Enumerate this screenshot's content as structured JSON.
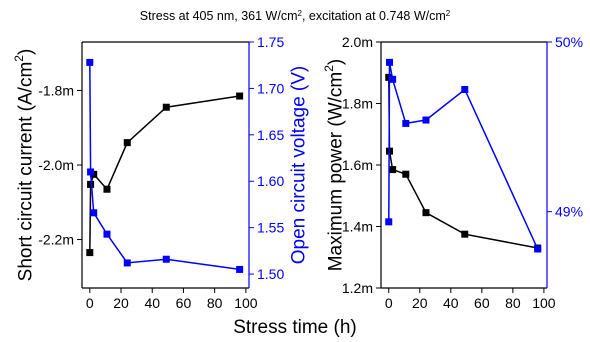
{
  "figure": {
    "title_html": "Stress at 405 nm, 361 W/cm<tspan baseline-shift=\"super\" font-size=\"8\">2</tspan>, excitation at 0.748 W/cm<tspan baseline-shift=\"super\" font-size=\"8\">2</tspan>",
    "title": "Stress at 405 nm, 361 W/cm2, excitation at 0.748 W/cm2",
    "xlabel": "Stress time (h)"
  },
  "chart_data": [
    {
      "type": "line",
      "xlabel": "Stress time (h)",
      "x_ticks": [
        "0",
        "20",
        "40",
        "60",
        "80",
        "100"
      ],
      "xlim": [
        -5,
        102
      ],
      "left_axis": {
        "label": "Short circuit current (A/cm2)",
        "label_html": "Short circuit current (A/cm<tspan baseline-shift=\"super\" font-size=\"12\">2</tspan>)",
        "color": "#000000",
        "ylim": [
          -2.33,
          -1.67
        ],
        "ticks": [
          -1.8,
          -2.0,
          -2.2
        ],
        "tick_labels": [
          "-1.8m",
          "-2.0m",
          "-2.2m"
        ]
      },
      "right_axis": {
        "label": "Open circuit voltage (V)",
        "color": "#0000ff",
        "ylim": [
          1.485,
          1.75
        ],
        "ticks": [
          1.75,
          1.7,
          1.65,
          1.6,
          1.55,
          1.5
        ],
        "tick_labels": [
          "1.75",
          "1.70",
          "1.65",
          "1.60",
          "1.55",
          "1.50"
        ]
      },
      "series": [
        {
          "axis": "left",
          "color": "#000000",
          "x": [
            0,
            0.5,
            2.5,
            11,
            24,
            49,
            96
          ],
          "y": [
            -2.235,
            -2.052,
            -2.025,
            -2.065,
            -1.94,
            -1.845,
            -1.815
          ]
        },
        {
          "axis": "right",
          "color": "#0000ff",
          "x": [
            0,
            0.5,
            2.5,
            11,
            24,
            49,
            96
          ],
          "y": [
            1.728,
            1.61,
            1.566,
            1.543,
            1.512,
            1.516,
            1.505
          ]
        }
      ]
    },
    {
      "type": "line",
      "xlabel": "Stress time (h)",
      "x_ticks": [
        "0",
        "20",
        "40",
        "60",
        "80",
        "100"
      ],
      "xlim": [
        -5,
        102
      ],
      "left_axis": {
        "label": "Maximum power (W/cm2)",
        "label_html": "Maximum power (W/cm<tspan baseline-shift=\"super\" font-size=\"12\">2</tspan>)",
        "color": "#000000",
        "ylim": [
          1.2,
          2.0
        ],
        "ticks": [
          2.0,
          1.8,
          1.6,
          1.4,
          1.2
        ],
        "tick_labels": [
          "2.0m",
          "1.8m",
          "1.6m",
          "1.4m",
          "1.2m"
        ]
      },
      "right_axis": {
        "label": "",
        "color": "#0000ff",
        "ylim": [
          48.55,
          50.0
        ],
        "ticks": [
          50,
          49
        ],
        "tick_labels": [
          "50%",
          "49%"
        ]
      },
      "series": [
        {
          "axis": "left",
          "color": "#000000",
          "x": [
            0,
            0.5,
            2.5,
            11,
            24,
            49,
            96
          ],
          "y": [
            1.885,
            1.645,
            1.585,
            1.57,
            1.445,
            1.375,
            1.33
          ]
        },
        {
          "axis": "right",
          "color": "#0000ff",
          "x": [
            0,
            0.5,
            2.5,
            11,
            24,
            49,
            96
          ],
          "y": [
            48.94,
            49.88,
            49.78,
            49.52,
            49.54,
            49.72,
            48.78
          ]
        }
      ]
    }
  ]
}
